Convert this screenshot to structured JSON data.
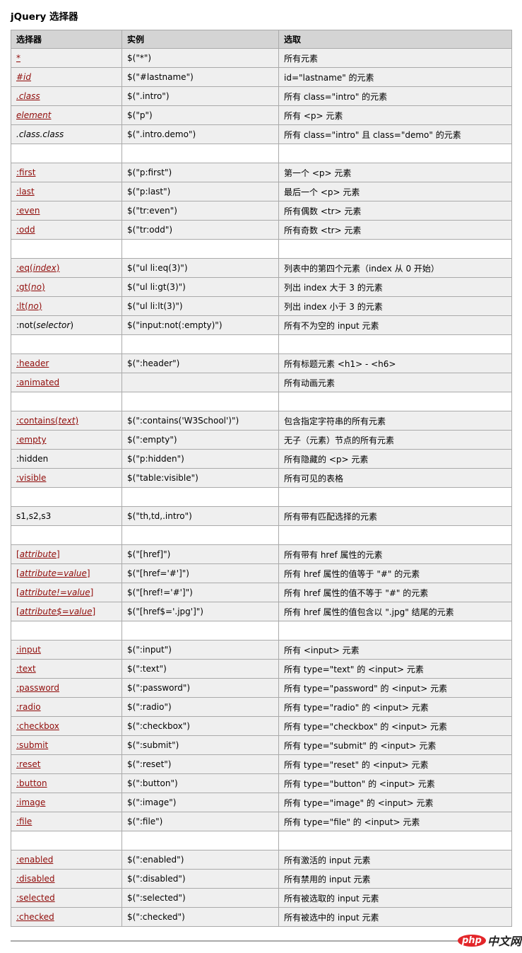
{
  "title": "jQuery 选择器",
  "headers": [
    "选择器",
    "实例",
    "选取"
  ],
  "link_color": "#900b09",
  "rows": [
    {
      "sel": [
        "*",
        "",
        ""
      ],
      "link": true,
      "ex": "$(\"*\")",
      "desc": "所有元素"
    },
    {
      "sel": [
        "",
        "#id",
        ""
      ],
      "link": true,
      "ex": "$(\"#lastname\")",
      "desc": "id=\"lastname\" 的元素"
    },
    {
      "sel": [
        "",
        ".class",
        ""
      ],
      "link": true,
      "ex": "$(\".intro\")",
      "desc": "所有 class=\"intro\" 的元素"
    },
    {
      "sel": [
        "",
        "element",
        ""
      ],
      "link": true,
      "ex": "$(\"p\")",
      "desc": "所有 <p> 元素"
    },
    {
      "sel": [
        "",
        ".class.class",
        ""
      ],
      "link": false,
      "ex": "$(\".intro.demo\")",
      "desc": "所有 class=\"intro\" 且 class=\"demo\" 的元素"
    },
    {
      "empty": true
    },
    {
      "sel": [
        ":first",
        "",
        ""
      ],
      "link": true,
      "ex": "$(\"p:first\")",
      "desc": "第一个 <p> 元素"
    },
    {
      "sel": [
        ":last",
        "",
        ""
      ],
      "link": true,
      "ex": "$(\"p:last\")",
      "desc": "最后一个 <p> 元素"
    },
    {
      "sel": [
        ":even",
        "",
        ""
      ],
      "link": true,
      "ex": "$(\"tr:even\")",
      "desc": "所有偶数 <tr> 元素"
    },
    {
      "sel": [
        ":odd",
        "",
        ""
      ],
      "link": true,
      "ex": "$(\"tr:odd\")",
      "desc": "所有奇数 <tr> 元素"
    },
    {
      "empty": true
    },
    {
      "sel": [
        ":eq(",
        "index",
        ")"
      ],
      "link": true,
      "ex": "$(\"ul li:eq(3)\")",
      "desc": "列表中的第四个元素（index 从 0 开始）"
    },
    {
      "sel": [
        ":gt(",
        "no",
        ")"
      ],
      "link": true,
      "ex": "$(\"ul li:gt(3)\")",
      "desc": "列出 index 大于 3 的元素"
    },
    {
      "sel": [
        ":lt(",
        "no",
        ")"
      ],
      "link": true,
      "ex": "$(\"ul li:lt(3)\")",
      "desc": "列出 index 小于 3 的元素"
    },
    {
      "sel": [
        ":not(",
        "selector",
        ")"
      ],
      "link": false,
      "ex": "$(\"input:not(:empty)\")",
      "desc": "所有不为空的 input 元素"
    },
    {
      "empty": true
    },
    {
      "sel": [
        ":header",
        "",
        ""
      ],
      "link": true,
      "ex": "$(\":header\")",
      "desc": "所有标题元素 <h1> - <h6>"
    },
    {
      "sel": [
        ":animated",
        "",
        ""
      ],
      "link": true,
      "ex": "",
      "desc": "所有动画元素"
    },
    {
      "empty": true
    },
    {
      "sel": [
        ":contains(",
        "text",
        ")"
      ],
      "link": true,
      "ex": "$(\":contains('W3School')\")",
      "desc": "包含指定字符串的所有元素"
    },
    {
      "sel": [
        ":empty",
        "",
        ""
      ],
      "link": true,
      "ex": "$(\":empty\")",
      "desc": "无子（元素）节点的所有元素"
    },
    {
      "sel": [
        ":hidden",
        "",
        ""
      ],
      "link": false,
      "ex": "$(\"p:hidden\")",
      "desc": "所有隐藏的 <p> 元素"
    },
    {
      "sel": [
        ":visible",
        "",
        ""
      ],
      "link": true,
      "ex": "$(\"table:visible\")",
      "desc": "所有可见的表格"
    },
    {
      "empty": true
    },
    {
      "sel": [
        "s1,s2,s3",
        "",
        ""
      ],
      "link": false,
      "ex": "$(\"th,td,.intro\")",
      "desc": "所有带有匹配选择的元素"
    },
    {
      "empty": true
    },
    {
      "sel": [
        "[",
        "attribute",
        "]"
      ],
      "link": true,
      "ex": "$(\"[href]\")",
      "desc": "所有带有 href 属性的元素"
    },
    {
      "sel": [
        "[",
        "attribute=value",
        "]"
      ],
      "link": true,
      "ex": "$(\"[href='#']\")",
      "desc": "所有 href 属性的值等于 \"#\" 的元素"
    },
    {
      "sel": [
        "[",
        "attribute!=value",
        "]"
      ],
      "link": true,
      "ex": "$(\"[href!='#']\")",
      "desc": "所有 href 属性的值不等于 \"#\" 的元素"
    },
    {
      "sel": [
        "[",
        "attribute$=value",
        "]"
      ],
      "link": true,
      "ex": "$(\"[href$='.jpg']\")",
      "desc": "所有 href 属性的值包含以 \".jpg\" 结尾的元素"
    },
    {
      "empty": true
    },
    {
      "sel": [
        ":input",
        "",
        ""
      ],
      "link": true,
      "ex": "$(\":input\")",
      "desc": "所有 <input> 元素"
    },
    {
      "sel": [
        ":text",
        "",
        ""
      ],
      "link": true,
      "ex": "$(\":text\")",
      "desc": "所有 type=\"text\" 的 <input> 元素"
    },
    {
      "sel": [
        ":password",
        "",
        ""
      ],
      "link": true,
      "ex": "$(\":password\")",
      "desc": "所有 type=\"password\" 的 <input> 元素"
    },
    {
      "sel": [
        ":radio",
        "",
        ""
      ],
      "link": true,
      "ex": "$(\":radio\")",
      "desc": "所有 type=\"radio\" 的 <input> 元素"
    },
    {
      "sel": [
        ":checkbox",
        "",
        ""
      ],
      "link": true,
      "ex": "$(\":checkbox\")",
      "desc": "所有 type=\"checkbox\" 的 <input> 元素"
    },
    {
      "sel": [
        ":submit",
        "",
        ""
      ],
      "link": true,
      "ex": "$(\":submit\")",
      "desc": "所有 type=\"submit\" 的 <input> 元素"
    },
    {
      "sel": [
        ":reset",
        "",
        ""
      ],
      "link": true,
      "ex": "$(\":reset\")",
      "desc": "所有 type=\"reset\" 的 <input> 元素"
    },
    {
      "sel": [
        ":button",
        "",
        ""
      ],
      "link": true,
      "ex": "$(\":button\")",
      "desc": "所有 type=\"button\" 的 <input> 元素"
    },
    {
      "sel": [
        ":image",
        "",
        ""
      ],
      "link": true,
      "ex": "$(\":image\")",
      "desc": "所有 type=\"image\" 的 <input> 元素"
    },
    {
      "sel": [
        ":file",
        "",
        ""
      ],
      "link": true,
      "ex": "$(\":file\")",
      "desc": "所有 type=\"file\" 的 <input> 元素"
    },
    {
      "empty": true
    },
    {
      "sel": [
        ":enabled",
        "",
        ""
      ],
      "link": true,
      "ex": "$(\":enabled\")",
      "desc": "所有激活的 input 元素"
    },
    {
      "sel": [
        ":disabled",
        "",
        ""
      ],
      "link": true,
      "ex": "$(\":disabled\")",
      "desc": "所有禁用的 input 元素"
    },
    {
      "sel": [
        ":selected",
        "",
        ""
      ],
      "link": true,
      "ex": "$(\":selected\")",
      "desc": "所有被选取的 input 元素"
    },
    {
      "sel": [
        ":checked",
        "",
        ""
      ],
      "link": true,
      "ex": "$(\":checked\")",
      "desc": "所有被选中的 input 元素"
    }
  ],
  "footer_logo": {
    "php": "php",
    "cn": "中文网"
  }
}
